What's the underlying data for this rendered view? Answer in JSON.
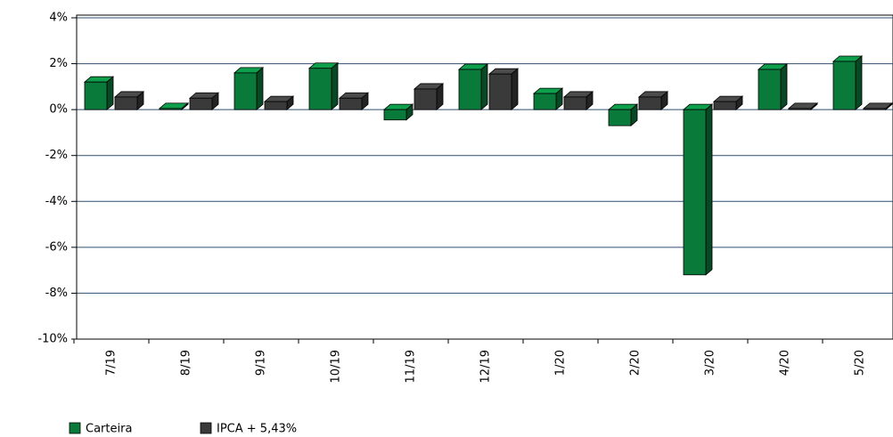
{
  "chart_data": {
    "type": "bar3d",
    "categories": [
      "7/19",
      "8/19",
      "9/19",
      "10/19",
      "11/19",
      "12/19",
      "1/20",
      "2/20",
      "3/20",
      "4/20",
      "5/20"
    ],
    "series": [
      {
        "name": "Carteira",
        "color": "#0a7a3a",
        "values": [
          1.2,
          0.05,
          1.6,
          1.8,
          -0.45,
          1.75,
          0.7,
          -0.7,
          -7.2,
          1.75,
          2.1
        ]
      },
      {
        "name": "IPCA + 5,43%",
        "color": "#3a3a3a",
        "values": [
          0.55,
          0.5,
          0.35,
          0.5,
          0.9,
          1.55,
          0.55,
          0.55,
          0.35,
          0.05,
          0.05
        ]
      }
    ],
    "ylim": [
      -10,
      4
    ],
    "yticks": [
      {
        "value": -10,
        "label": "-10%"
      },
      {
        "value": -8,
        "label": "-8%"
      },
      {
        "value": -6,
        "label": "-6%"
      },
      {
        "value": -4,
        "label": "-4%"
      },
      {
        "value": -2,
        "label": "-2%"
      },
      {
        "value": 0,
        "label": "0%"
      },
      {
        "value": 2,
        "label": "2%"
      },
      {
        "value": 4,
        "label": "4%"
      }
    ],
    "grid": true
  }
}
